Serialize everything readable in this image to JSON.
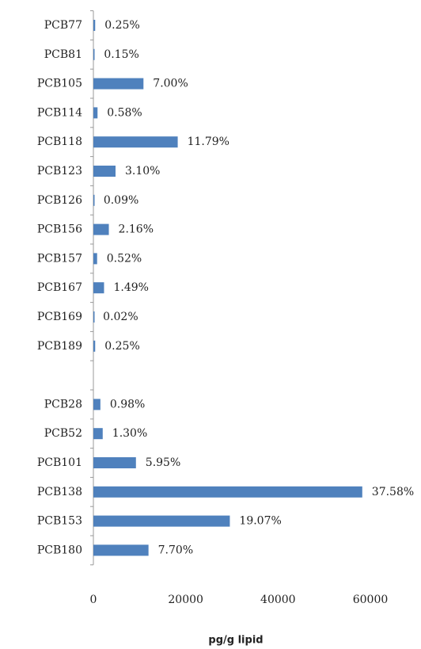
{
  "chart_data": {
    "type": "barh",
    "categories": [
      "PCB77",
      "PCB81",
      "PCB105",
      "PCB114",
      "PCB118",
      "PCB123",
      "PCB126",
      "PCB156",
      "PCB157",
      "PCB167",
      "PCB169",
      "PCB189",
      null,
      "PCB28",
      "PCB52",
      "PCB101",
      "PCB138",
      "PCB153",
      "PCB180"
    ],
    "values": [
      390,
      230,
      10850,
      900,
      18270,
      4800,
      140,
      3350,
      810,
      2310,
      30,
      390,
      null,
      1520,
      2020,
      9220,
      58250,
      29560,
      11940
    ],
    "value_labels": [
      "0.25%",
      "0.15%",
      "7.00%",
      "0.58%",
      "11.79%",
      "3.10%",
      "0.09%",
      "2.16%",
      "0.52%",
      "1.49%",
      "0.02%",
      "0.25%",
      null,
      "0.98%",
      "1.30%",
      "5.95%",
      "37.58%",
      "19.07%",
      "7.70%"
    ],
    "color": "#4f81bd",
    "xlabel": "pg/g lipid",
    "xlim": [
      0,
      60000
    ],
    "xticks": [
      0,
      20000,
      40000,
      60000
    ]
  }
}
